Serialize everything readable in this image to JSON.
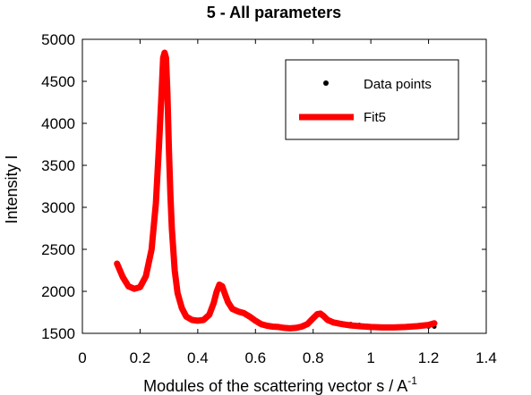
{
  "chart_data": {
    "type": "line",
    "title": "5 - All parameters",
    "xlabel": "Modules of the scattering vector s / A",
    "xlabel_superscript": "-1",
    "ylabel": "Intensity I",
    "xlim": [
      0,
      1.4
    ],
    "ylim": [
      1500,
      5000
    ],
    "x_ticks": [
      "0",
      "0.2",
      "0.4",
      "0.6",
      "0.8",
      "1",
      "1.2",
      "1.4"
    ],
    "y_ticks": [
      "1500",
      "2000",
      "2500",
      "3000",
      "3500",
      "4000",
      "4500",
      "5000"
    ],
    "grid": false,
    "legend_position": "top-right",
    "series": [
      {
        "name": "Data points",
        "style": "markers",
        "color": "#000000",
        "x": [
          0.12,
          0.14,
          0.16,
          0.18,
          0.2,
          0.22,
          0.24,
          0.255,
          0.265,
          0.275,
          0.28,
          0.285,
          0.29,
          0.295,
          0.3,
          0.305,
          0.31,
          0.32,
          0.33,
          0.345,
          0.36,
          0.38,
          0.4,
          0.42,
          0.44,
          0.455,
          0.465,
          0.475,
          0.485,
          0.495,
          0.505,
          0.52,
          0.54,
          0.56,
          0.58,
          0.6,
          0.62,
          0.64,
          0.66,
          0.68,
          0.7,
          0.72,
          0.74,
          0.76,
          0.78,
          0.8,
          0.815,
          0.825,
          0.835,
          0.85,
          0.87,
          0.9,
          0.93,
          0.96,
          1.0,
          1.04,
          1.08,
          1.12,
          1.16,
          1.2,
          1.22
        ],
        "y": [
          2330,
          2170,
          2060,
          2030,
          2050,
          2180,
          2500,
          3050,
          3700,
          4400,
          4780,
          4840,
          4780,
          4350,
          3700,
          3150,
          2750,
          2250,
          1980,
          1800,
          1700,
          1660,
          1650,
          1660,
          1720,
          1860,
          1980,
          2080,
          2060,
          1960,
          1870,
          1790,
          1760,
          1740,
          1700,
          1650,
          1610,
          1590,
          1580,
          1575,
          1565,
          1560,
          1565,
          1580,
          1610,
          1680,
          1730,
          1730,
          1710,
          1660,
          1640,
          1620,
          1610,
          1600,
          1585,
          1575,
          1570,
          1570,
          1575,
          1580,
          1580
        ]
      },
      {
        "name": "Fit5",
        "style": "line",
        "color": "#ff0000",
        "x": [
          0.12,
          0.14,
          0.16,
          0.18,
          0.2,
          0.22,
          0.24,
          0.255,
          0.265,
          0.275,
          0.28,
          0.285,
          0.29,
          0.295,
          0.3,
          0.305,
          0.31,
          0.32,
          0.33,
          0.345,
          0.36,
          0.38,
          0.4,
          0.42,
          0.44,
          0.455,
          0.465,
          0.475,
          0.485,
          0.495,
          0.505,
          0.52,
          0.54,
          0.56,
          0.58,
          0.6,
          0.62,
          0.64,
          0.66,
          0.68,
          0.7,
          0.72,
          0.74,
          0.76,
          0.78,
          0.8,
          0.815,
          0.825,
          0.835,
          0.85,
          0.87,
          0.9,
          0.93,
          0.96,
          1.0,
          1.04,
          1.08,
          1.12,
          1.16,
          1.2,
          1.22
        ],
        "y": [
          2330,
          2170,
          2060,
          2030,
          2050,
          2180,
          2500,
          3050,
          3700,
          4400,
          4780,
          4840,
          4780,
          4350,
          3700,
          3150,
          2750,
          2250,
          1980,
          1800,
          1700,
          1660,
          1650,
          1660,
          1720,
          1860,
          1990,
          2080,
          2060,
          1960,
          1870,
          1790,
          1760,
          1740,
          1700,
          1650,
          1610,
          1590,
          1580,
          1575,
          1565,
          1560,
          1565,
          1580,
          1610,
          1680,
          1730,
          1735,
          1710,
          1660,
          1630,
          1610,
          1595,
          1585,
          1575,
          1570,
          1570,
          1575,
          1585,
          1600,
          1620
        ]
      }
    ]
  }
}
